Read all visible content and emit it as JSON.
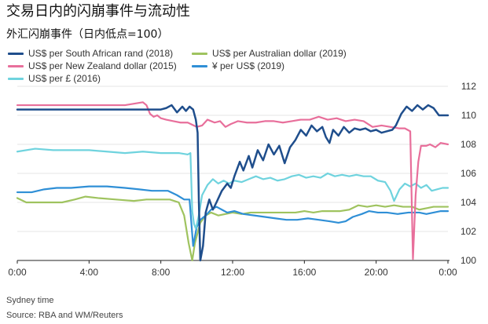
{
  "page": {
    "title": "交易日内的闪崩事件与流动性",
    "subtitle": "外汇闪崩事件（日内低点=100）",
    "footnote_time": "Sydney time",
    "footnote_source": "Source: RBA and WM/Reuters"
  },
  "colors": {
    "rand": "#1f4e8c",
    "nz": "#e86f9b",
    "pound": "#6fd3de",
    "aud": "#9fc35f",
    "yen": "#2f8fd6",
    "grid": "#e4e4e4",
    "axis": "#222222"
  },
  "chart_data": {
    "type": "line",
    "title": "交易日内的闪崩事件与流动性",
    "subtitle": "外汇闪崩事件（日内低点=100）",
    "xlabel": "",
    "ylabel": "",
    "x_ticks": [
      "0:00",
      "4:00",
      "8:00",
      "12:00",
      "16:00",
      "20:00",
      "0:00"
    ],
    "y_ticks": [
      100,
      102,
      104,
      106,
      108,
      110,
      112
    ],
    "ylim": [
      100,
      112
    ],
    "xlim": [
      0,
      24
    ],
    "grid": true,
    "legend_placement": "top",
    "series": [
      {
        "name": "US$ per South African rand (2018)",
        "color_key": "rand",
        "points": [
          [
            0,
            110.4
          ],
          [
            8.0,
            110.4
          ],
          [
            8.3,
            110.5
          ],
          [
            8.6,
            110.7
          ],
          [
            8.9,
            110.2
          ],
          [
            9.2,
            110.6
          ],
          [
            9.4,
            110.3
          ],
          [
            9.6,
            110.6
          ],
          [
            9.8,
            110.4
          ],
          [
            9.95,
            109.7
          ],
          [
            10.05,
            108.8
          ],
          [
            10.12,
            104.0
          ],
          [
            10.2,
            100.0
          ],
          [
            10.35,
            101.0
          ],
          [
            10.5,
            103.3
          ],
          [
            10.7,
            104.2
          ],
          [
            10.9,
            103.5
          ],
          [
            11.1,
            104.0
          ],
          [
            11.4,
            104.8
          ],
          [
            11.7,
            105.3
          ],
          [
            11.9,
            105.0
          ],
          [
            12.1,
            105.8
          ],
          [
            12.4,
            106.8
          ],
          [
            12.6,
            106.2
          ],
          [
            12.9,
            107.2
          ],
          [
            13.1,
            106.4
          ],
          [
            13.4,
            107.6
          ],
          [
            13.7,
            106.9
          ],
          [
            14.0,
            108.0
          ],
          [
            14.3,
            107.3
          ],
          [
            14.6,
            107.9
          ],
          [
            14.9,
            106.7
          ],
          [
            15.2,
            107.8
          ],
          [
            15.5,
            108.3
          ],
          [
            15.8,
            109.0
          ],
          [
            16.1,
            108.6
          ],
          [
            16.4,
            109.3
          ],
          [
            16.7,
            108.9
          ],
          [
            17.0,
            109.2
          ],
          [
            17.2,
            108.5
          ],
          [
            17.4,
            108.1
          ],
          [
            17.6,
            109.0
          ],
          [
            17.9,
            108.6
          ],
          [
            18.2,
            109.2
          ],
          [
            18.5,
            108.8
          ],
          [
            18.8,
            109.1
          ],
          [
            19.1,
            109.0
          ],
          [
            19.4,
            109.1
          ],
          [
            19.7,
            108.9
          ],
          [
            20.0,
            109.0
          ],
          [
            20.3,
            108.8
          ],
          [
            20.6,
            108.9
          ],
          [
            20.9,
            109.0
          ],
          [
            21.1,
            109.3
          ],
          [
            21.4,
            110.1
          ],
          [
            21.7,
            110.6
          ],
          [
            22.0,
            110.3
          ],
          [
            22.3,
            110.7
          ],
          [
            22.6,
            110.4
          ],
          [
            22.9,
            110.7
          ],
          [
            23.2,
            110.5
          ],
          [
            23.5,
            110.0
          ],
          [
            24.0,
            110.0
          ]
        ]
      },
      {
        "name": "US$ per New Zealand dollar (2015)",
        "color_key": "nz",
        "points": [
          [
            0,
            110.7
          ],
          [
            6.0,
            110.7
          ],
          [
            6.5,
            110.8
          ],
          [
            7.0,
            110.9
          ],
          [
            7.2,
            110.7
          ],
          [
            7.4,
            110.1
          ],
          [
            7.6,
            109.9
          ],
          [
            7.8,
            110.0
          ],
          [
            8.0,
            109.8
          ],
          [
            8.3,
            109.7
          ],
          [
            8.7,
            109.6
          ],
          [
            9.1,
            109.5
          ],
          [
            9.5,
            109.5
          ],
          [
            10.0,
            109.2
          ],
          [
            10.3,
            109.3
          ],
          [
            10.6,
            109.7
          ],
          [
            11.0,
            109.5
          ],
          [
            11.3,
            109.6
          ],
          [
            11.6,
            109.2
          ],
          [
            11.9,
            109.4
          ],
          [
            12.3,
            109.6
          ],
          [
            12.8,
            109.5
          ],
          [
            13.3,
            109.5
          ],
          [
            13.8,
            109.6
          ],
          [
            14.3,
            109.6
          ],
          [
            14.8,
            109.5
          ],
          [
            15.3,
            109.6
          ],
          [
            15.8,
            109.7
          ],
          [
            16.3,
            109.7
          ],
          [
            16.8,
            109.9
          ],
          [
            17.3,
            109.7
          ],
          [
            17.8,
            109.8
          ],
          [
            18.3,
            109.6
          ],
          [
            18.8,
            109.7
          ],
          [
            19.3,
            109.6
          ],
          [
            19.8,
            109.2
          ],
          [
            20.3,
            109.3
          ],
          [
            20.8,
            109.2
          ],
          [
            21.3,
            109.1
          ],
          [
            21.6,
            109.1
          ],
          [
            21.9,
            108.9
          ],
          [
            22.05,
            100.1
          ],
          [
            22.2,
            104.5
          ],
          [
            22.35,
            106.8
          ],
          [
            22.5,
            107.9
          ],
          [
            22.8,
            107.9
          ],
          [
            23.0,
            108.0
          ],
          [
            23.3,
            107.8
          ],
          [
            23.6,
            108.1
          ],
          [
            24.0,
            108.0
          ]
        ]
      },
      {
        "name": "US$ per £ (2016)",
        "color_key": "pound",
        "points": [
          [
            0,
            107.5
          ],
          [
            1.0,
            107.7
          ],
          [
            2.0,
            107.6
          ],
          [
            3.0,
            107.6
          ],
          [
            4.0,
            107.6
          ],
          [
            5.0,
            107.5
          ],
          [
            6.0,
            107.4
          ],
          [
            7.0,
            107.5
          ],
          [
            8.0,
            107.4
          ],
          [
            9.0,
            107.4
          ],
          [
            9.5,
            107.3
          ],
          [
            9.65,
            107.4
          ],
          [
            9.75,
            103.4
          ],
          [
            9.85,
            102.5
          ],
          [
            9.95,
            102.2
          ],
          [
            10.1,
            103.0
          ],
          [
            10.3,
            104.5
          ],
          [
            10.6,
            105.2
          ],
          [
            10.9,
            105.6
          ],
          [
            11.2,
            105.3
          ],
          [
            11.5,
            105.5
          ],
          [
            11.8,
            105.3
          ],
          [
            12.1,
            105.5
          ],
          [
            12.5,
            105.4
          ],
          [
            12.9,
            105.6
          ],
          [
            13.3,
            105.8
          ],
          [
            13.7,
            105.6
          ],
          [
            14.1,
            105.7
          ],
          [
            14.5,
            105.5
          ],
          [
            14.9,
            105.6
          ],
          [
            15.3,
            105.8
          ],
          [
            15.7,
            105.9
          ],
          [
            16.1,
            105.7
          ],
          [
            16.5,
            105.8
          ],
          [
            16.9,
            105.7
          ],
          [
            17.3,
            106.0
          ],
          [
            17.7,
            105.8
          ],
          [
            18.1,
            105.9
          ],
          [
            18.5,
            105.8
          ],
          [
            18.9,
            105.9
          ],
          [
            19.3,
            105.8
          ],
          [
            19.7,
            105.8
          ],
          [
            20.1,
            105.5
          ],
          [
            20.5,
            105.4
          ],
          [
            20.8,
            104.8
          ],
          [
            21.0,
            104.1
          ],
          [
            21.3,
            104.9
          ],
          [
            21.6,
            105.3
          ],
          [
            21.9,
            105.1
          ],
          [
            22.2,
            105.3
          ],
          [
            22.5,
            105.0
          ],
          [
            22.8,
            105.2
          ],
          [
            23.1,
            104.8
          ],
          [
            23.4,
            104.9
          ],
          [
            23.7,
            105.0
          ],
          [
            24.0,
            105.0
          ]
        ]
      },
      {
        "name": "US$ per Australian dollar (2019)",
        "color_key": "aud",
        "points": [
          [
            0,
            104.3
          ],
          [
            0.5,
            104.0
          ],
          [
            1.5,
            104.0
          ],
          [
            2.5,
            104.0
          ],
          [
            3.2,
            104.2
          ],
          [
            3.8,
            104.4
          ],
          [
            4.5,
            104.3
          ],
          [
            5.5,
            104.2
          ],
          [
            6.5,
            104.1
          ],
          [
            7.2,
            104.2
          ],
          [
            8.5,
            104.2
          ],
          [
            9.0,
            104.0
          ],
          [
            9.3,
            103.1
          ],
          [
            9.55,
            101.2
          ],
          [
            9.75,
            100.0
          ],
          [
            9.9,
            101.2
          ],
          [
            10.2,
            102.6
          ],
          [
            10.5,
            103.1
          ],
          [
            10.8,
            103.3
          ],
          [
            11.2,
            103.1
          ],
          [
            11.6,
            103.2
          ],
          [
            12.0,
            103.3
          ],
          [
            12.5,
            103.2
          ],
          [
            13.0,
            103.3
          ],
          [
            13.5,
            103.3
          ],
          [
            14.0,
            103.3
          ],
          [
            14.5,
            103.3
          ],
          [
            15.0,
            103.3
          ],
          [
            15.5,
            103.3
          ],
          [
            16.0,
            103.4
          ],
          [
            16.5,
            103.3
          ],
          [
            17.0,
            103.4
          ],
          [
            17.5,
            103.4
          ],
          [
            18.0,
            103.4
          ],
          [
            18.5,
            103.5
          ],
          [
            19.0,
            103.8
          ],
          [
            19.5,
            103.7
          ],
          [
            20.0,
            103.8
          ],
          [
            20.5,
            103.7
          ],
          [
            21.0,
            103.8
          ],
          [
            21.5,
            103.7
          ],
          [
            22.0,
            103.7
          ],
          [
            22.4,
            103.5
          ],
          [
            22.8,
            103.6
          ],
          [
            23.2,
            103.7
          ],
          [
            23.6,
            103.7
          ],
          [
            24.0,
            103.7
          ]
        ]
      },
      {
        "name": "¥ per US$ (2019)",
        "color_key": "yen",
        "points": [
          [
            0,
            104.7
          ],
          [
            0.8,
            104.7
          ],
          [
            1.5,
            104.9
          ],
          [
            2.2,
            105.0
          ],
          [
            3.0,
            105.0
          ],
          [
            4.0,
            105.1
          ],
          [
            5.0,
            105.1
          ],
          [
            6.0,
            105.0
          ],
          [
            6.8,
            104.9
          ],
          [
            7.5,
            104.8
          ],
          [
            8.4,
            104.8
          ],
          [
            8.9,
            104.5
          ],
          [
            9.3,
            104.2
          ],
          [
            9.6,
            104.2
          ],
          [
            9.8,
            101.0
          ],
          [
            10.0,
            102.3
          ],
          [
            10.2,
            102.8
          ],
          [
            10.5,
            103.1
          ],
          [
            10.8,
            103.5
          ],
          [
            11.1,
            103.7
          ],
          [
            11.4,
            103.5
          ],
          [
            11.7,
            103.3
          ],
          [
            12.1,
            103.4
          ],
          [
            12.6,
            103.2
          ],
          [
            13.2,
            103.1
          ],
          [
            13.8,
            103.0
          ],
          [
            14.4,
            102.9
          ],
          [
            15.0,
            102.8
          ],
          [
            15.6,
            102.8
          ],
          [
            16.2,
            102.9
          ],
          [
            16.8,
            102.8
          ],
          [
            17.4,
            102.7
          ],
          [
            17.9,
            102.6
          ],
          [
            18.3,
            102.7
          ],
          [
            18.7,
            103.0
          ],
          [
            19.2,
            103.2
          ],
          [
            19.6,
            103.4
          ],
          [
            20.1,
            103.3
          ],
          [
            20.6,
            103.3
          ],
          [
            21.2,
            103.2
          ],
          [
            21.8,
            103.3
          ],
          [
            22.4,
            103.3
          ],
          [
            22.8,
            103.2
          ],
          [
            23.2,
            103.3
          ],
          [
            23.6,
            103.4
          ],
          [
            24.0,
            103.4
          ]
        ]
      }
    ]
  }
}
